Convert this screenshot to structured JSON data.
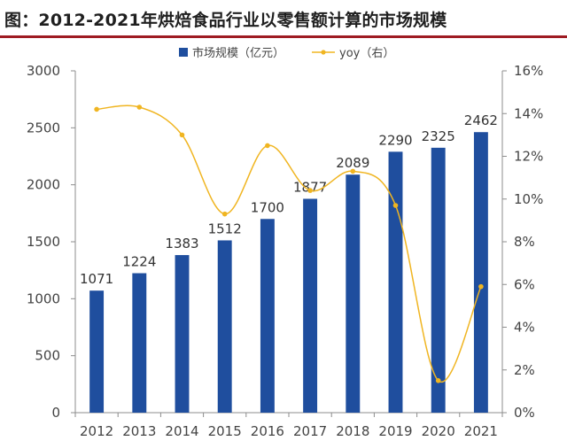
{
  "title": "图：2012-2021年烘焙食品行业以零售额计算的市场规模",
  "chart_data": {
    "type": "bar",
    "categories": [
      "2012",
      "2013",
      "2014",
      "2015",
      "2016",
      "2017",
      "2018",
      "2019",
      "2020",
      "2021"
    ],
    "series": [
      {
        "name": "市场规模（亿元）",
        "type": "bar",
        "axis": "left",
        "color": "#1f4e9e",
        "values": [
          1071,
          1224,
          1383,
          1512,
          1700,
          1877,
          2089,
          2290,
          2325,
          2462
        ],
        "labels": [
          "1071",
          "1224",
          "1383",
          "1512",
          "1700",
          "1877",
          "2089",
          "2290",
          "2325",
          "2462"
        ]
      },
      {
        "name": "yoy（右）",
        "type": "line",
        "axis": "right",
        "color": "#f0b521",
        "smooth": true,
        "values": [
          0.142,
          0.143,
          0.13,
          0.093,
          0.125,
          0.104,
          0.113,
          0.097,
          0.015,
          0.059
        ]
      }
    ],
    "y_left": {
      "ylim": [
        0,
        3000
      ],
      "ticks": [
        "0",
        "500",
        "1000",
        "1500",
        "2000",
        "2500",
        "3000"
      ]
    },
    "y_right": {
      "ylim": [
        0,
        0.16
      ],
      "ticks": [
        "0%",
        "2%",
        "4%",
        "6%",
        "8%",
        "10%",
        "12%",
        "14%",
        "16%"
      ]
    },
    "legend_position": "top",
    "grid": false
  }
}
